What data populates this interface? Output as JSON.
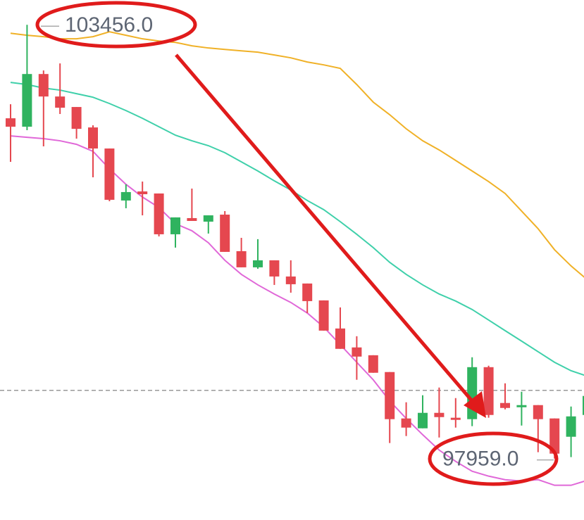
{
  "chart_data": {
    "type": "candlestick",
    "categories": [
      null,
      null,
      null,
      null,
      null,
      null,
      null,
      null,
      null,
      null,
      null,
      null,
      null,
      null,
      null,
      null,
      null,
      null,
      null,
      null,
      null,
      null,
      null,
      null,
      null,
      null,
      null,
      null,
      null,
      null,
      null,
      null,
      null,
      null,
      null,
      null
    ],
    "open": [
      102271,
      102164,
      102832,
      102547,
      102414,
      102155,
      101888,
      101229,
      101344,
      101318,
      100801,
      101006,
      100961,
      101050,
      100587,
      100382,
      100471,
      100266,
      100177,
      99963,
      99607,
      99367,
      99268,
      99055,
      98467,
      98342,
      98538,
      98476,
      98458,
      99117,
      98663,
      98609,
      98636,
      98467,
      98235,
      98511
    ],
    "high": [
      102449,
      103456,
      102877,
      102966,
      102414,
      102182,
      101888,
      101434,
      101469,
      101318,
      101015,
      101380,
      101041,
      101095,
      100756,
      100739,
      100471,
      100471,
      100177,
      99963,
      99874,
      99509,
      99268,
      99055,
      98672,
      98761,
      98859,
      98725,
      99242,
      99135,
      98912,
      98805,
      98636,
      98467,
      98618,
      98752
    ],
    "low": [
      101719,
      102120,
      101915,
      102325,
      102013,
      101523,
      101220,
      101131,
      101041,
      100774,
      100632,
      100970,
      100810,
      100578,
      100382,
      100364,
      100159,
      100061,
      99803,
      99580,
      99349,
      98957,
      99046,
      98155,
      98244,
      98342,
      98226,
      98351,
      98369,
      98476,
      98582,
      98377,
      98039,
      97959,
      97977,
      98511
    ],
    "close": [
      102164,
      102832,
      102547,
      102405,
      102137,
      101888,
      101238,
      101336,
      101309,
      100801,
      101015,
      100970,
      101041,
      100578,
      100382,
      100471,
      100266,
      100168,
      99954,
      99580,
      99349,
      99251,
      99046,
      98458,
      98351,
      98538,
      98484,
      98449,
      99117,
      98511,
      98600,
      98636,
      98458,
      98021,
      98493,
      98752
    ],
    "up_color": "#2fb35f",
    "down_color": "#e5474f",
    "lines": [
      {
        "color": "#f0b127",
        "values": [
          103349,
          103323,
          103305,
          103278,
          103278,
          103305,
          103367,
          103323,
          103278,
          103251,
          103233,
          103189,
          103162,
          103144,
          103126,
          103109,
          103073,
          103037,
          102984,
          102948,
          102904,
          102699,
          102476,
          102316,
          102138,
          101986,
          101870,
          101737,
          101603,
          101469,
          101318,
          101095,
          100872,
          100605,
          100400,
          100222
        ]
      },
      {
        "color": "#3fd0aa",
        "values": [
          102726,
          102699,
          102654,
          102628,
          102583,
          102538,
          102458,
          102369,
          102271,
          102164,
          102057,
          101986,
          101924,
          101835,
          101719,
          101603,
          101478,
          101362,
          101229,
          101113,
          100961,
          100801,
          100632,
          100445,
          100293,
          100160,
          100044,
          99955,
          99848,
          99714,
          99580,
          99447,
          99313,
          99179,
          99072,
          99001
        ]
      },
      {
        "color": "#e068d8",
        "values": [
          102048,
          102030,
          102013,
          101986,
          101941,
          101852,
          101630,
          101434,
          101273,
          101140,
          100935,
          100846,
          100694,
          100471,
          100293,
          100160,
          100044,
          99937,
          99803,
          99625,
          99402,
          99179,
          98957,
          98689,
          98467,
          98261,
          98066,
          97923,
          97798,
          97736,
          97691,
          97674,
          97691,
          97620,
          97620,
          97683
        ]
      }
    ],
    "reference_line": 98823,
    "ylim": [
      97180,
      103770
    ],
    "annotations": [
      {
        "value": 103456,
        "label": "103456.0"
      },
      {
        "value": 97959,
        "label": "97959.0"
      }
    ]
  }
}
